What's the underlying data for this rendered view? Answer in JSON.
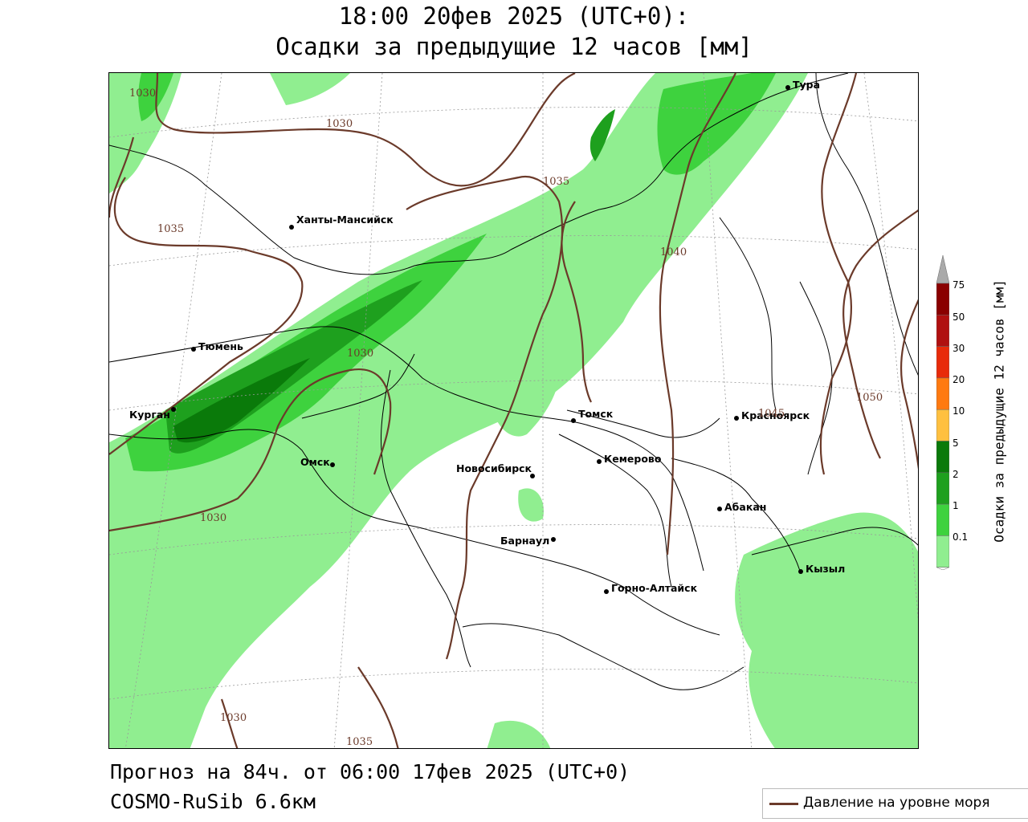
{
  "title": {
    "line1": "18:00 20фев 2025 (UTC+0):",
    "line2": "Осадки за предыдущие 12 часов [мм]"
  },
  "footer": {
    "forecast": "Прогноз на 84ч. от 06:00 17фев 2025 (UTC+0)",
    "model": "COSMO-RuSib 6.6км"
  },
  "legend": {
    "pressure_label": "Давление на уровне моря",
    "pressure_color": "#6b3a2a"
  },
  "colorbar": {
    "title": "Осадки за предыдущие 12 часов [мм]",
    "levels": [
      "0.1",
      "1",
      "2",
      "5",
      "10",
      "20",
      "30",
      "50",
      "75"
    ],
    "colors": [
      "#ffffff",
      "#90ee90",
      "#3ed23e",
      "#1ea01e",
      "#0a7a0a",
      "#ffc040",
      "#ff7a10",
      "#e82a0a",
      "#b01010",
      "#8a0000",
      "#aaaaaa"
    ]
  },
  "cities": [
    {
      "name": "Тура"
    },
    {
      "name": "Ханты-Мансийск"
    },
    {
      "name": "Тюмень"
    },
    {
      "name": "Курган"
    },
    {
      "name": "Омск"
    },
    {
      "name": "Новосибирск"
    },
    {
      "name": "Томск"
    },
    {
      "name": "Кемерово"
    },
    {
      "name": "Красноярск"
    },
    {
      "name": "Абакан"
    },
    {
      "name": "Барнаул"
    },
    {
      "name": "Горно-Алтайск"
    },
    {
      "name": "Кызыл"
    }
  ],
  "isobars": [
    "1030",
    "1030",
    "1035",
    "1035",
    "1030",
    "1040",
    "1045",
    "1050",
    "1030",
    "1030",
    "1035"
  ],
  "map_colors": {
    "light": "#90ee90",
    "medium": "#3ed23e",
    "dark": "#1ea01e",
    "darkest": "#0a7a0a",
    "border": "#000000",
    "grid": "#999999"
  }
}
